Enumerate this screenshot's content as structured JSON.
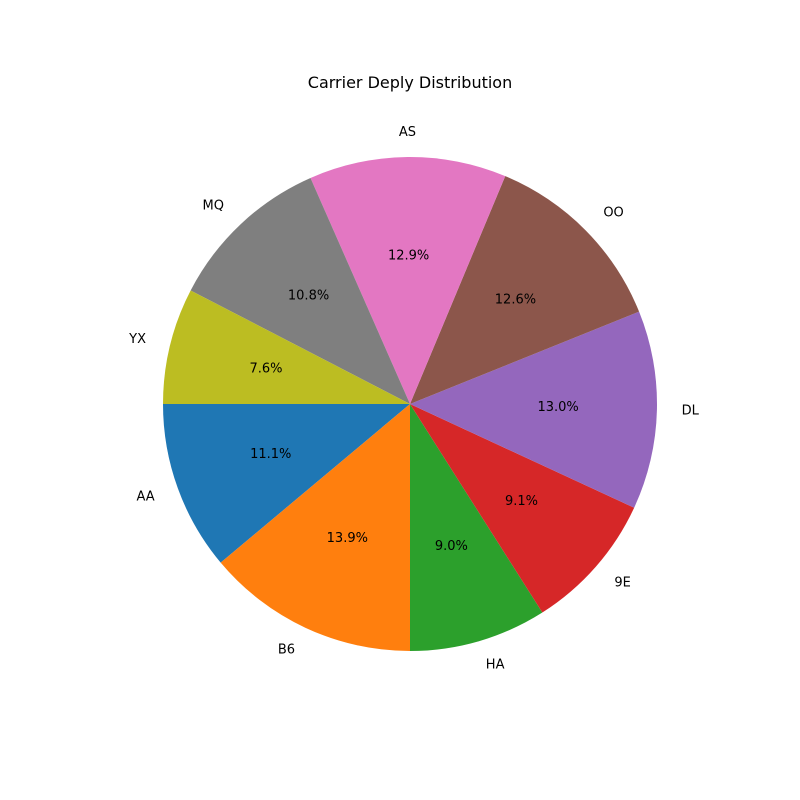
{
  "chart_data": {
    "type": "pie",
    "title": "Carrier Deply Distribution",
    "start_angle_deg": 180,
    "direction": "counterclockwise",
    "slices": [
      {
        "label": "AA",
        "value": 11.1,
        "pct_text": "11.1%",
        "color": "#1f77b4"
      },
      {
        "label": "B6",
        "value": 13.9,
        "pct_text": "13.9%",
        "color": "#ff7f0e"
      },
      {
        "label": "HA",
        "value": 9.0,
        "pct_text": "9.0%",
        "color": "#2ca02c"
      },
      {
        "label": "9E",
        "value": 9.1,
        "pct_text": "9.1%",
        "color": "#d62728"
      },
      {
        "label": "DL",
        "value": 13.0,
        "pct_text": "13.0%",
        "color": "#9467bd"
      },
      {
        "label": "OO",
        "value": 12.6,
        "pct_text": "12.6%",
        "color": "#8c564b"
      },
      {
        "label": "AS",
        "value": 12.9,
        "pct_text": "12.9%",
        "color": "#e377c2"
      },
      {
        "label": "MQ",
        "value": 10.8,
        "pct_text": "10.8%",
        "color": "#7f7f7f"
      },
      {
        "label": "YX",
        "value": 7.6,
        "pct_text": "7.6%",
        "color": "#bcbd22"
      }
    ]
  }
}
